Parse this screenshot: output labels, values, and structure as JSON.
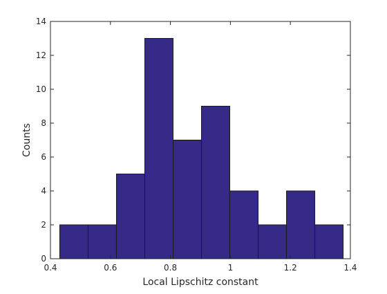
{
  "chart_data": {
    "type": "bar",
    "title": "",
    "xlabel": "Local Lipschitz constant",
    "ylabel": "Counts",
    "xlim": [
      0.4,
      1.4
    ],
    "ylim": [
      0,
      14
    ],
    "grid": false,
    "legend": "none",
    "bar_color": "#352a87",
    "edge_color": "#1a1a1a",
    "bin_edges": [
      0.431,
      0.5255,
      0.62,
      0.7145,
      0.809,
      0.9035,
      0.998,
      1.0925,
      1.187,
      1.2815,
      1.376
    ],
    "counts": [
      2,
      2,
      5,
      13,
      7,
      9,
      4,
      2,
      4,
      2
    ],
    "xticks": [
      0.4,
      0.6,
      0.8,
      1.0,
      1.2,
      1.4
    ],
    "xtick_labels": [
      "0.4",
      "0.6",
      "0.8",
      "1",
      "1.2",
      "1.4"
    ],
    "yticks": [
      0,
      2,
      4,
      6,
      8,
      10,
      12,
      14
    ],
    "ytick_labels": [
      "0",
      "2",
      "4",
      "6",
      "8",
      "10",
      "12",
      "14"
    ]
  }
}
